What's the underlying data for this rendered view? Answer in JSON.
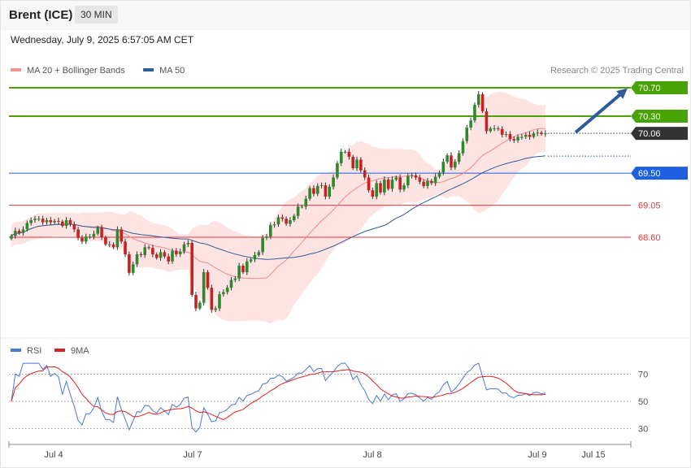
{
  "header": {
    "title": "Brent (ICE)",
    "timeframe": "30 MIN"
  },
  "datetime": "Wednesday, July 9, 2025 6:57:05 AM CET",
  "copyright": "Research © 2025 Trading Central",
  "chart_data": {
    "type": "candlestick",
    "legend": [
      {
        "name": "MA 20 + Bollinger Bands",
        "color": "#f4918e"
      },
      {
        "name": "MA 50",
        "color": "#2f5b9a"
      }
    ],
    "x_ticks": [
      "Jul 4",
      "Jul 7",
      "Jul 8",
      "Jul 9",
      "Jul 15"
    ],
    "price_levels": [
      {
        "label": "70.70",
        "value": 70.7,
        "kind": "resistance",
        "color": "#4aa306"
      },
      {
        "label": "70.30",
        "value": 70.3,
        "kind": "resistance",
        "color": "#4aa306"
      },
      {
        "label": "70.06",
        "value": 70.06,
        "kind": "last",
        "color": "#333333"
      },
      {
        "label": "69.50",
        "value": 69.5,
        "kind": "pivot",
        "color": "#1d5fe0"
      },
      {
        "label": "69.05",
        "value": 69.05,
        "kind": "support",
        "color": "#e23a3a"
      },
      {
        "label": "68.60",
        "value": 68.6,
        "kind": "support",
        "color": "#e23a3a"
      }
    ],
    "closes": [
      68.62,
      68.69,
      68.66,
      68.71,
      68.8,
      68.84,
      68.86,
      68.86,
      68.81,
      68.84,
      68.81,
      68.83,
      68.82,
      68.76,
      68.84,
      68.78,
      68.71,
      68.59,
      68.54,
      68.61,
      68.61,
      68.65,
      68.73,
      68.6,
      68.5,
      68.5,
      68.46,
      68.71,
      68.54,
      68.36,
      68.1,
      68.22,
      68.36,
      68.35,
      68.46,
      68.45,
      68.36,
      68.31,
      68.39,
      68.33,
      68.26,
      68.41,
      68.36,
      68.4,
      68.5,
      68.52,
      67.79,
      67.6,
      67.68,
      68.11,
      67.89,
      67.58,
      67.6,
      67.8,
      67.83,
      67.89,
      68.0,
      68.02,
      68.2,
      68.11,
      68.26,
      68.29,
      68.35,
      68.39,
      68.59,
      68.61,
      68.77,
      68.78,
      68.88,
      68.86,
      68.79,
      68.84,
      68.9,
      69.03,
      69.03,
      69.14,
      69.29,
      69.21,
      69.32,
      69.33,
      69.17,
      69.31,
      69.44,
      69.64,
      69.8,
      69.8,
      69.73,
      69.57,
      69.69,
      69.54,
      69.44,
      69.26,
      69.17,
      69.36,
      69.23,
      69.41,
      69.28,
      69.41,
      69.44,
      69.27,
      69.33,
      69.46,
      69.47,
      69.44,
      69.38,
      69.32,
      69.39,
      69.36,
      69.45,
      69.51,
      69.66,
      69.75,
      69.58,
      69.66,
      69.78,
      69.95,
      70.14,
      70.24,
      70.46,
      70.61,
      70.37,
      70.09,
      70.13,
      70.13,
      70.12,
      70.04,
      70.05,
      69.98,
      69.96,
      70.01,
      70.01,
      70.04,
      70.01,
      70.06,
      70.07,
      70.05,
      70.06
    ],
    "rsi": {
      "levels": [
        70,
        50,
        30
      ],
      "series": [
        {
          "name": "RSI",
          "color": "#4a78d4"
        },
        {
          "name": "9MA",
          "color": "#e02020"
        }
      ]
    }
  }
}
